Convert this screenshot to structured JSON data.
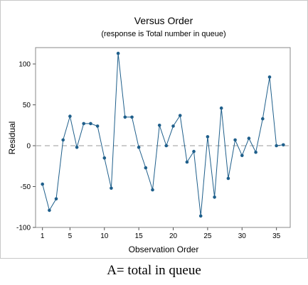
{
  "chart_data": {
    "type": "line",
    "title": "Versus Order",
    "subtitle": "(response is Total number in queue)",
    "xlabel": "Observation Order",
    "ylabel": "Residual",
    "xlim": [
      0,
      37
    ],
    "ylim": [
      -100,
      120
    ],
    "xticks": [
      1,
      5,
      10,
      15,
      20,
      25,
      30,
      35
    ],
    "yticks": [
      -100,
      -50,
      0,
      50,
      100
    ],
    "reference_line": 0,
    "grid": false,
    "series_color": "#1f5f8b",
    "reference_color": "#999999",
    "x": [
      1,
      2,
      3,
      4,
      5,
      6,
      7,
      8,
      9,
      10,
      11,
      12,
      13,
      14,
      15,
      16,
      17,
      18,
      19,
      20,
      21,
      22,
      23,
      24,
      25,
      26,
      27,
      28,
      29,
      30,
      31,
      32,
      33,
      34,
      35,
      36
    ],
    "values": [
      -47,
      -79,
      -65,
      7,
      36,
      -2,
      27,
      27,
      24,
      -15,
      -52,
      113,
      35,
      35,
      -2,
      -27,
      -54,
      25,
      0,
      24,
      37,
      -20,
      -7,
      -86,
      11,
      -63,
      46,
      -40,
      7,
      -12,
      9,
      -8,
      33,
      84,
      0,
      1
    ]
  },
  "caption": "A= total in queue"
}
